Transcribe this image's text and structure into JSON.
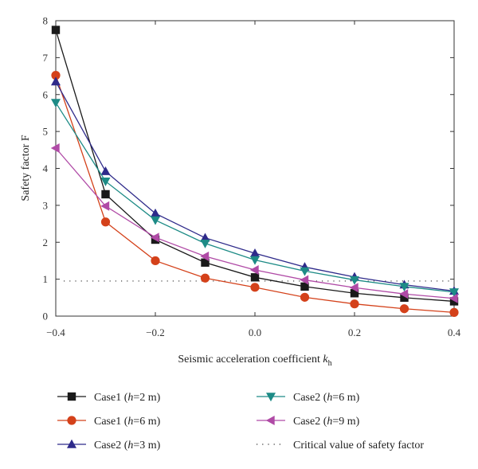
{
  "chart_data": {
    "type": "line",
    "title": "",
    "xlabel_main": "Seismic acceleration coefficient ",
    "xlabel_var": "k",
    "xlabel_sub": "h",
    "ylabel": "Safety factor F",
    "xlim": [
      -0.4,
      0.4
    ],
    "ylim": [
      0,
      8
    ],
    "xticks": [
      -0.4,
      -0.2,
      0.0,
      0.2,
      0.4
    ],
    "xtick_labels": [
      "−0.4",
      "−0.2",
      "0.0",
      "0.2",
      "0.4"
    ],
    "yticks": [
      0,
      1,
      2,
      3,
      4,
      5,
      6,
      7,
      8
    ],
    "ytick_labels": [
      "0",
      "1",
      "2",
      "3",
      "4",
      "5",
      "6",
      "7",
      "8"
    ],
    "legend_placement": "bottom",
    "x": [
      -0.4,
      -0.3,
      -0.2,
      -0.1,
      0.0,
      0.1,
      0.2,
      0.3,
      0.4
    ],
    "series": [
      {
        "name_prefix": "Case1 (",
        "name_var": "h",
        "name_suffix": "=2 m)",
        "color": "#1a1a1a",
        "marker": "square",
        "values": [
          7.75,
          3.3,
          2.07,
          1.45,
          1.05,
          0.8,
          0.62,
          0.5,
          0.4
        ]
      },
      {
        "name_prefix": "Case1 (",
        "name_var": "h",
        "name_suffix": "=6 m)",
        "color": "#d4411a",
        "marker": "circle",
        "values": [
          6.52,
          2.55,
          1.5,
          1.03,
          0.78,
          0.51,
          0.33,
          0.2,
          0.1
        ]
      },
      {
        "name_prefix": "Case2 (",
        "name_var": "h",
        "name_suffix": "=3 m)",
        "color": "#2e2a8a",
        "marker": "triangle-up",
        "values": [
          6.35,
          3.92,
          2.78,
          2.12,
          1.7,
          1.33,
          1.06,
          0.85,
          0.68
        ]
      },
      {
        "name_prefix": "Case2 (",
        "name_var": "h",
        "name_suffix": "=6 m)",
        "color": "#1d8b86",
        "marker": "triangle-down",
        "values": [
          5.78,
          3.65,
          2.6,
          1.97,
          1.52,
          1.22,
          0.98,
          0.8,
          0.65
        ]
      },
      {
        "name_prefix": "Case2 (",
        "name_var": "h",
        "name_suffix": "=9 m)",
        "color": "#b04aa6",
        "marker": "triangle-left",
        "values": [
          4.55,
          2.98,
          2.13,
          1.62,
          1.25,
          0.98,
          0.77,
          0.6,
          0.48
        ]
      }
    ],
    "reference_line": {
      "name": "Critical value of safety factor",
      "y": 0.95,
      "color": "#333333",
      "style": "dotted"
    }
  }
}
